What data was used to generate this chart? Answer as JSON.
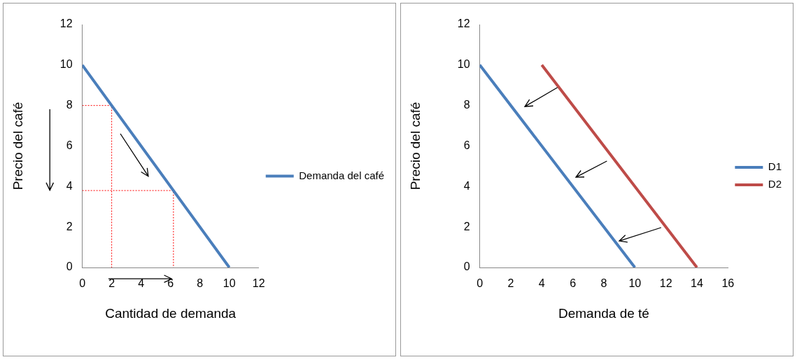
{
  "chart_data": [
    {
      "type": "line",
      "xlabel": "Cantidad de demanda",
      "ylabel": "Precio del café",
      "xlim": [
        0,
        12
      ],
      "xticks": [
        0,
        2,
        4,
        6,
        8,
        10,
        12
      ],
      "ylim": [
        0,
        12
      ],
      "yticks": [
        0,
        2,
        4,
        6,
        8,
        10,
        12
      ],
      "grid": false,
      "legend": "right",
      "marker": "none",
      "series": [
        {
          "name": "Demanda del café",
          "color": "#4a7ebb",
          "x": [
            0,
            10
          ],
          "values": [
            10,
            0
          ]
        },
        {
          "color": "#ff0000",
          "line_style": "dotted",
          "x": [
            0,
            2,
            2
          ],
          "values": [
            8,
            8,
            0
          ]
        },
        {
          "color": "#ff0000",
          "line_style": "dotted",
          "x": [
            0,
            6.2,
            6.2
          ],
          "values": [
            3.8,
            3.8,
            0
          ]
        }
      ]
    },
    {
      "type": "line",
      "xlabel": "Demanda de té",
      "ylabel": "Precio del café",
      "xlim": [
        0,
        16
      ],
      "xticks": [
        0,
        2,
        4,
        6,
        8,
        10,
        12,
        14,
        16
      ],
      "ylim": [
        0,
        12
      ],
      "yticks": [
        0,
        2,
        4,
        6,
        8,
        10,
        12
      ],
      "grid": false,
      "legend": "right",
      "marker": "none",
      "series": [
        {
          "name": "D1",
          "color": "#4a7ebb",
          "x": [
            0,
            10
          ],
          "values": [
            10,
            0
          ]
        },
        {
          "name": "D2",
          "color": "#be4b48",
          "x": [
            4,
            14
          ],
          "values": [
            10,
            0
          ]
        }
      ]
    }
  ]
}
